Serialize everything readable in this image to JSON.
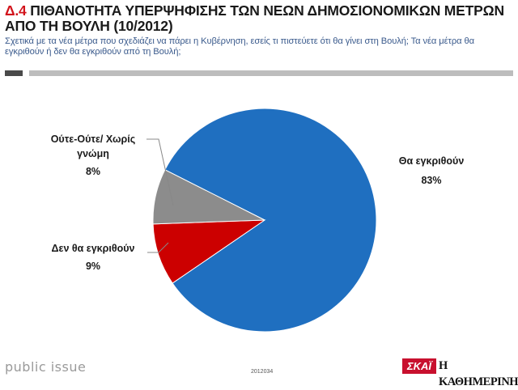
{
  "header": {
    "code": "Δ.4",
    "title": "ΠΙΘΑΝΟΤΗΤΑ ΥΠΕΡΨΗΦΙΣΗΣ ΤΩΝ ΝΕΩΝ ΔΗΜΟΣΙΟΝΟΜΙΚΩΝ ΜΕΤΡΩΝ ΑΠΟ ΤΗ ΒΟΥΛΗ (10/2012)",
    "subtitle": "Σχετικά με τα νέα μέτρα που σχεδιάζει να πάρει η Κυβέρνηση, εσείς τι πιστεύετε ότι θα γίνει στη Βουλή; Τα νέα μέτρα θα εγκριθούν ή δεν θα εγκριθούν από τη Βουλή;"
  },
  "chart_data": {
    "type": "pie",
    "slices": [
      {
        "label": "Θα εγκριθούν",
        "value": 83,
        "value_label": "83%",
        "color": "#1f6fc0"
      },
      {
        "label": "Δεν θα εγκριθούν",
        "value": 9,
        "value_label": "9%",
        "color": "#cc0000"
      },
      {
        "label": "Ούτε-Ούτε/ Χωρίς γνώμη",
        "label_lines": [
          "Ούτε-Ούτε/ Χωρίς",
          "γνώμη"
        ],
        "value": 8,
        "value_label": "8%",
        "color": "#8c8c8c"
      }
    ]
  },
  "footer": {
    "brand": "public issue",
    "code": "2012034",
    "logo_skai": "ΣΚΑΪ",
    "logo_kathimerini": "Η ΚΑΘΗΜΕΡΙΝΗ"
  }
}
